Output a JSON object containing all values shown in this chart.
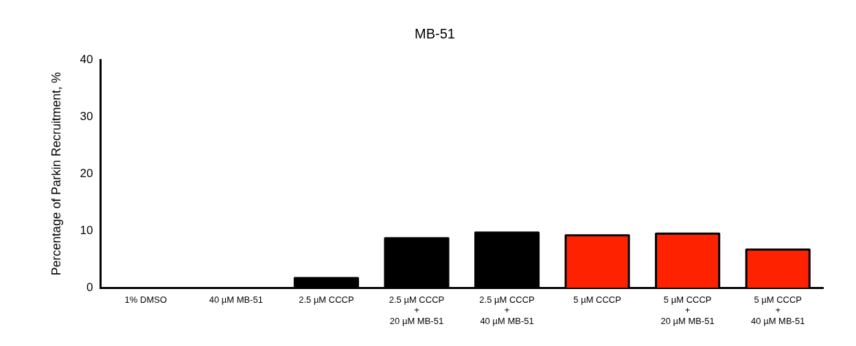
{
  "chart_data": {
    "type": "bar",
    "title": "MB-51",
    "ylabel": "Percentage of Parkin Recruitment, %",
    "categories": [
      "1% DMSO",
      "40 µM MB-51",
      "2.5 µM CCCP",
      "2.5 µM CCCP\n+\n20 µM MB-51",
      "2.5 µM CCCP\n+\n40 µM MB-51",
      "5 µM CCCP",
      "5 µM CCCP\n+\n20 µM MB-51",
      "5 µM CCCP\n+\n40 µM MB-51"
    ],
    "values": [
      0,
      0,
      1.7,
      8.7,
      9.7,
      9.2,
      9.5,
      6.7
    ],
    "colors": [
      "#000000",
      "#000000",
      "#000000",
      "#000000",
      "#000000",
      "#ff2200",
      "#ff2200",
      "#ff2200"
    ],
    "ylim": [
      0,
      40
    ],
    "yticks": [
      0,
      10,
      20,
      30,
      40
    ],
    "grid": false,
    "legend": false
  }
}
